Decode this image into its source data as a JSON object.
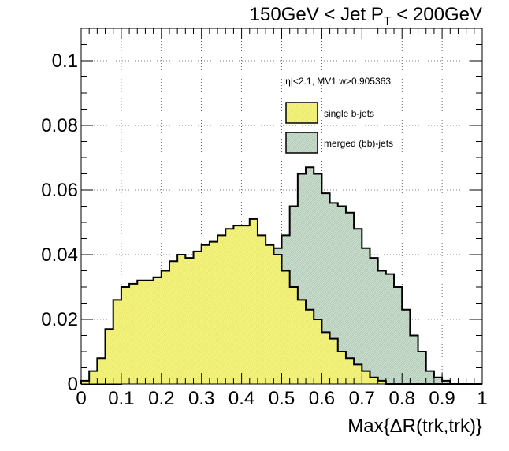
{
  "colors": {
    "single": "#f4f47c",
    "merged": "#c8dccc",
    "line": "#000000"
  },
  "chart_data": {
    "type": "histogram",
    "title_main": "150GeV < Jet P",
    "title_sub": "T",
    "title_end": " < 200GeV",
    "xlabel": "Max{ΔR(trk,trk)}",
    "ylabel": "",
    "xlim": [
      0,
      1
    ],
    "ylim": [
      0,
      0.11
    ],
    "xticks": [
      "0",
      "0.1",
      "0.2",
      "0.3",
      "0.4",
      "0.5",
      "0.6",
      "0.7",
      "0.8",
      "0.9",
      "1"
    ],
    "yticks": [
      "0",
      "0.02",
      "0.04",
      "0.06",
      "0.08",
      "0.1"
    ],
    "grid": true,
    "annotation": "|η|<2.1, MV1 w>0.905363",
    "legend": {
      "position": "top-right",
      "entries": [
        "single b-jets",
        "merged (bb)-jets"
      ]
    },
    "bin_width": 0.02,
    "series": [
      {
        "name": "single b-jets",
        "fill": "single",
        "values": [
          0.001,
          0.004,
          0.008,
          0.017,
          0.026,
          0.03,
          0.031,
          0.032,
          0.032,
          0.033,
          0.035,
          0.038,
          0.04,
          0.039,
          0.041,
          0.043,
          0.044,
          0.046,
          0.048,
          0.049,
          0.049,
          0.051,
          0.046,
          0.043,
          0.04,
          0.035,
          0.03,
          0.026,
          0.023,
          0.02,
          0.016,
          0.014,
          0.01,
          0.008,
          0.006,
          0.004,
          0.002,
          0.001,
          0.0,
          0.0,
          0.0,
          0.0,
          0.0,
          0.0,
          0.0,
          0.0,
          0.0,
          0.0,
          0.0,
          0.0
        ]
      },
      {
        "name": "merged (bb)-jets",
        "fill": "merged",
        "values": [
          0.0,
          0.0,
          0.0,
          0.0,
          0.0,
          0.001,
          0.002,
          0.002,
          0.003,
          0.003,
          0.004,
          0.005,
          0.006,
          0.006,
          0.008,
          0.01,
          0.013,
          0.016,
          0.02,
          0.023,
          0.025,
          0.03,
          0.034,
          0.037,
          0.042,
          0.046,
          0.055,
          0.065,
          0.067,
          0.065,
          0.059,
          0.056,
          0.055,
          0.053,
          0.048,
          0.042,
          0.039,
          0.035,
          0.034,
          0.03,
          0.023,
          0.015,
          0.01,
          0.004,
          0.002,
          0.001,
          0.0,
          0.0,
          0.0,
          0.0
        ]
      }
    ]
  }
}
